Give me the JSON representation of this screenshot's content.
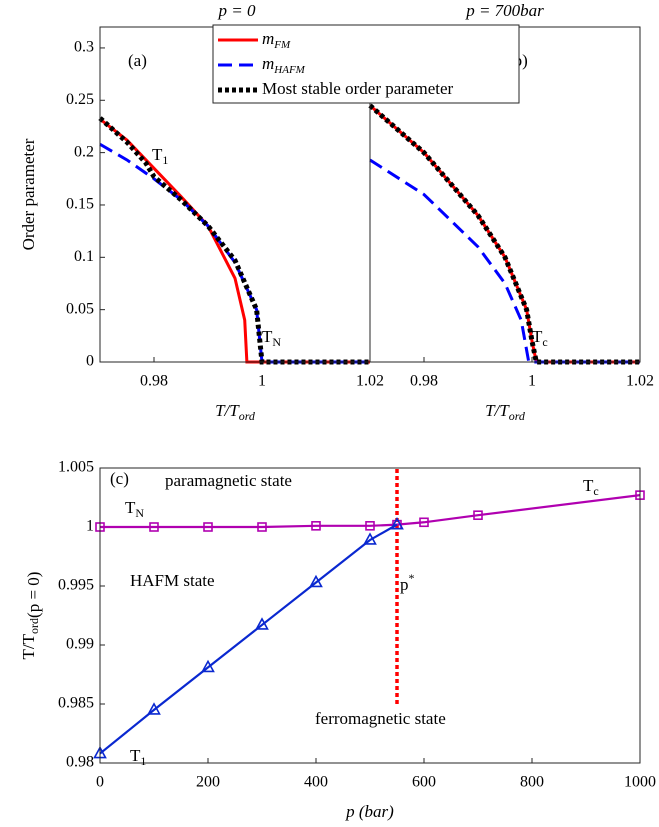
{
  "chart_data": [
    {
      "type": "line",
      "title": "p = 0",
      "xlabel": [
        {
          "t": "T/T"
        },
        {
          "sub": "ord"
        }
      ],
      "ylabel": [
        {
          "t": "Order parameter"
        }
      ],
      "xlim": [
        0.97,
        1.02
      ],
      "ylim": [
        0,
        0.32
      ],
      "xticks": [
        0.98,
        1,
        1.02
      ],
      "yticks": [
        0,
        0.05,
        0.1,
        0.15,
        0.2,
        0.25,
        0.3
      ],
      "series": [
        {
          "name": "m",
          "name_sub": "FM",
          "color": "#ff0000",
          "style": "solid",
          "x": [
            0.97,
            0.975,
            0.98,
            0.985,
            0.99,
            0.995,
            0.9968,
            0.9972,
            1.0,
            1.02
          ],
          "values": [
            0.232,
            0.212,
            0.185,
            0.158,
            0.13,
            0.08,
            0.04,
            0,
            0,
            0
          ]
        },
        {
          "name": "m",
          "name_sub": "HAFM",
          "color": "#0000ff",
          "style": "dashed",
          "x": [
            0.97,
            0.975,
            0.98,
            0.985,
            0.99,
            0.995,
            0.999,
            1.0,
            1.02
          ],
          "values": [
            0.208,
            0.193,
            0.175,
            0.155,
            0.13,
            0.095,
            0.05,
            0,
            0
          ]
        },
        {
          "name": "Most stable order parameter",
          "color": "#000000",
          "style": "dotted",
          "x": [
            0.97,
            0.975,
            0.9785,
            0.98,
            0.985,
            0.99,
            0.995,
            0.999,
            1.0,
            1.02
          ],
          "values": [
            0.233,
            0.21,
            0.19,
            0.177,
            0.155,
            0.13,
            0.097,
            0.05,
            0,
            0
          ]
        }
      ],
      "annotations": [
        {
          "parts": [
            {
              "t": "(a)"
            }
          ],
          "color": "#000000"
        },
        {
          "parts": [
            {
              "t": "T"
            },
            {
              "sub": "1"
            }
          ],
          "color": "#0000ff"
        },
        {
          "parts": [
            {
              "t": "T"
            },
            {
              "sub": "N"
            }
          ],
          "color": "#a000c0"
        }
      ]
    },
    {
      "type": "line",
      "title": "p = 700bar",
      "xlabel": [
        {
          "t": "T/T"
        },
        {
          "sub": "ord"
        }
      ],
      "xlim": [
        0.97,
        1.02
      ],
      "ylim": [
        0,
        0.32
      ],
      "xticks": [
        0.98,
        1,
        1.02
      ],
      "series": [
        {
          "color": "#ff0000",
          "style": "solid",
          "x": [
            0.97,
            0.98,
            0.99,
            0.995,
            0.999,
            1.0,
            1.0008,
            1.02
          ],
          "values": [
            0.245,
            0.2,
            0.14,
            0.1,
            0.05,
            0.02,
            0,
            0
          ]
        },
        {
          "color": "#0000ff",
          "style": "dashed",
          "x": [
            0.97,
            0.98,
            0.99,
            0.995,
            0.998,
            0.9994,
            1.02
          ],
          "values": [
            0.193,
            0.16,
            0.11,
            0.075,
            0.04,
            0,
            0
          ]
        },
        {
          "color": "#000000",
          "style": "dotted",
          "x": [
            0.97,
            0.98,
            0.99,
            0.995,
            0.999,
            1.0,
            1.0008,
            1.02
          ],
          "values": [
            0.245,
            0.2,
            0.14,
            0.1,
            0.05,
            0.02,
            0,
            0
          ]
        }
      ],
      "annotations": [
        {
          "parts": [
            {
              "t": "(b)"
            }
          ],
          "color": "#000000"
        },
        {
          "parts": [
            {
              "t": "T"
            },
            {
              "sub": "c"
            }
          ],
          "color": "#a000c0"
        }
      ]
    },
    {
      "type": "line",
      "xlabel": [
        {
          "t": "p (bar)"
        }
      ],
      "ylabel": [
        {
          "t": "T/T"
        },
        {
          "sub": "ord"
        },
        {
          "t": "(p = 0)"
        }
      ],
      "xlim": [
        0,
        1000
      ],
      "ylim": [
        0.98,
        1.005
      ],
      "xticks": [
        0,
        200,
        400,
        600,
        800,
        1000
      ],
      "yticks": [
        0.98,
        0.985,
        0.99,
        0.995,
        1,
        1.005
      ],
      "series": [
        {
          "color": "#b000b0",
          "style": "solid",
          "marker": "square",
          "x": [
            0,
            100,
            200,
            300,
            400,
            500,
            550,
            600,
            700,
            1000
          ],
          "values": [
            1.0,
            1.0,
            1.0,
            1.0,
            1.0001,
            1.0001,
            1.0002,
            1.0004,
            1.001,
            1.0027
          ]
        },
        {
          "color": "#0a28d0",
          "style": "solid",
          "marker": "triangle",
          "x": [
            0,
            100,
            200,
            300,
            400,
            500,
            550
          ],
          "values": [
            0.9808,
            0.9845,
            0.9881,
            0.9917,
            0.9953,
            0.9989,
            1.0002
          ]
        }
      ],
      "vline": {
        "x": 550,
        "y": [
          0.985,
          1.005
        ],
        "color": "#ff0000"
      },
      "annotations": [
        {
          "parts": [
            {
              "t": "(c)"
            }
          ],
          "color": "#000000"
        },
        {
          "parts": [
            {
              "t": "paramagnetic state"
            }
          ],
          "color": "#000000"
        },
        {
          "parts": [
            {
              "t": "T"
            },
            {
              "sub": "N"
            }
          ],
          "color": "#a000c0"
        },
        {
          "parts": [
            {
              "t": "T"
            },
            {
              "sub": "c"
            }
          ],
          "color": "#a000c0"
        },
        {
          "parts": [
            {
              "t": "HAFM state"
            }
          ],
          "color": "#000000"
        },
        {
          "parts": [
            {
              "t": "p"
            },
            {
              "sup": "*"
            }
          ],
          "color": "#ff0000"
        },
        {
          "parts": [
            {
              "t": "T"
            },
            {
              "sub": "1"
            }
          ],
          "color": "#0a28d0"
        },
        {
          "parts": [
            {
              "t": "ferromagnetic state"
            }
          ],
          "color": "#000000"
        }
      ]
    }
  ]
}
